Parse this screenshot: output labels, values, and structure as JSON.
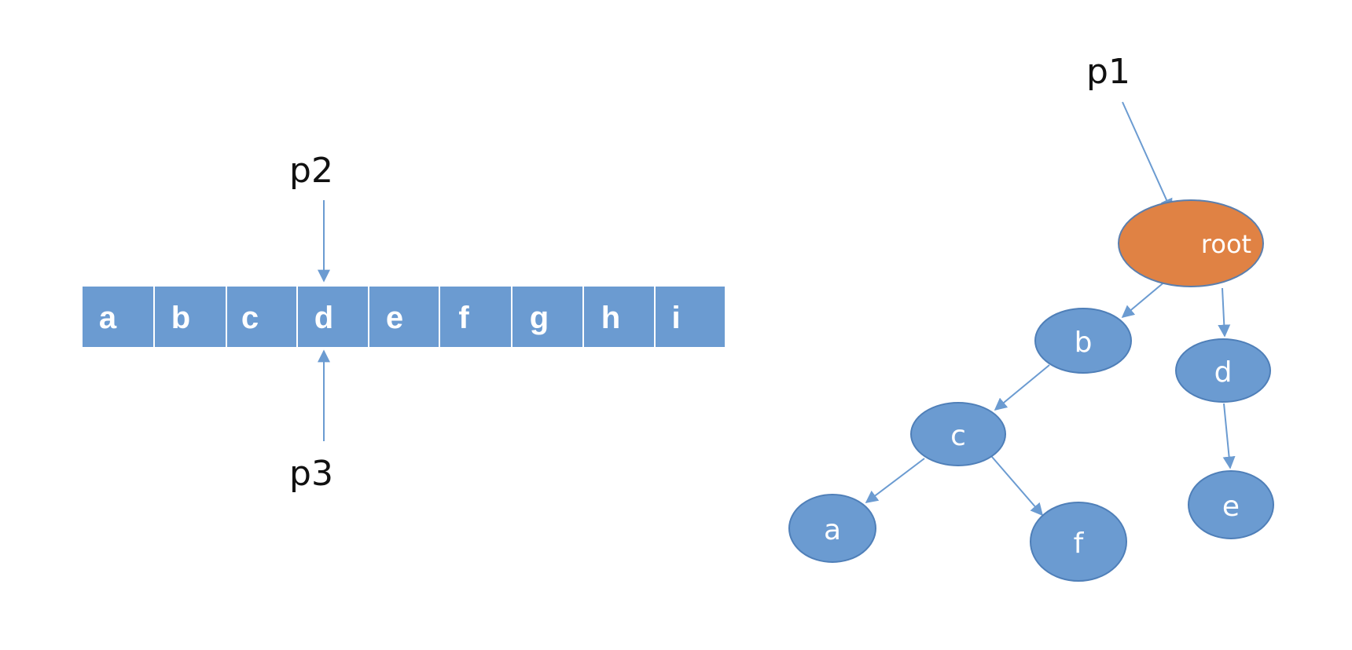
{
  "array": {
    "cells": [
      "a",
      "b",
      "c",
      "d",
      "e",
      "f",
      "g",
      "h",
      "i"
    ]
  },
  "pointers": {
    "p1": "p1",
    "p2": "p2",
    "p3": "p3"
  },
  "tree": {
    "root": "root",
    "b": "b",
    "c": "c",
    "d": "d",
    "a": "a",
    "f": "f",
    "e": "e"
  },
  "colors": {
    "cell_fill": "#6b9bd1",
    "node_fill": "#6b9bd1",
    "node_stroke": "#4f7fb8",
    "root_fill": "#e08244",
    "root_stroke": "#5b7fae",
    "arrow": "#6b9bd1"
  }
}
